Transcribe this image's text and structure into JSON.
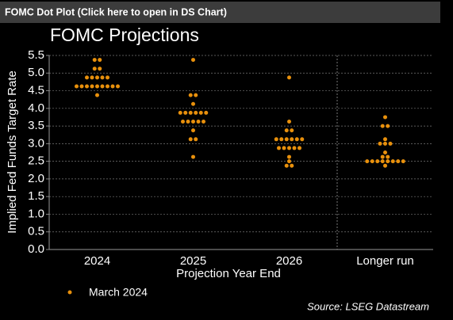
{
  "header": "FOMC Dot Plot (Click here to open in DS Chart)",
  "chart_data": {
    "type": "dot",
    "title": "FOMC Projections",
    "ylabel": "Implied Fed Funds Target Rate",
    "xlabel": "Projection Year End",
    "categories": [
      "2024",
      "2025",
      "2026",
      "Longer run"
    ],
    "series": [
      {
        "name": "March 2024",
        "color": "#e8900c",
        "values": [
          [
            5.375,
            5.375,
            5.125,
            5.125,
            4.875,
            4.875,
            4.875,
            4.875,
            4.875,
            4.625,
            4.625,
            4.625,
            4.625,
            4.625,
            4.625,
            4.625,
            4.625,
            4.625,
            4.375
          ],
          [
            5.375,
            4.375,
            4.375,
            4.125,
            3.875,
            3.875,
            3.875,
            3.875,
            3.875,
            3.875,
            3.625,
            3.625,
            3.625,
            3.625,
            3.625,
            3.375,
            3.125,
            3.125,
            2.625
          ],
          [
            4.875,
            3.625,
            3.375,
            3.375,
            3.125,
            3.125,
            3.125,
            3.125,
            3.125,
            3.125,
            2.875,
            2.875,
            2.875,
            2.875,
            2.875,
            2.625,
            2.5,
            2.375,
            2.375
          ],
          [
            3.75,
            3.5,
            3.5,
            3.125,
            3.0,
            3.0,
            3.0,
            2.75,
            2.625,
            2.625,
            2.5,
            2.5,
            2.5,
            2.5,
            2.5,
            2.5,
            2.5,
            2.5,
            2.375
          ]
        ]
      }
    ],
    "ylim": [
      0,
      5.5
    ],
    "yticks": [
      {
        "value": 0,
        "label": "0.0"
      },
      0.5,
      {
        "value": 1,
        "label": "1.0"
      },
      1.5,
      {
        "value": 2,
        "label": "2.0"
      },
      2.5,
      {
        "value": 3,
        "label": "3.0"
      },
      3.5,
      {
        "value": 4,
        "label": "4.0"
      },
      4.5,
      {
        "value": 5,
        "label": "5.0"
      },
      5.5
    ],
    "grid": true,
    "legend": "bottom-left",
    "source": "Source: LSEG Datastream"
  }
}
